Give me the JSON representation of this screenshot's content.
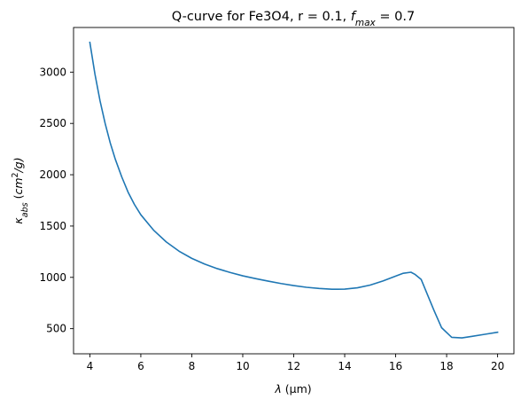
{
  "chart_data": {
    "type": "line",
    "title": {
      "text": "Q-curve for Fe3O4, r = 0.1, ",
      "var_symbol": "f",
      "var_subscript": "max",
      "value_text": " = 0.7"
    },
    "xlabel": {
      "symbol": "λ",
      "unit": " (μm)"
    },
    "ylabel": {
      "symbol": "κ",
      "subscript": "abs",
      "unit_open": " (",
      "unit_base": "cm",
      "unit_sup": "2",
      "unit_rest": "/g)"
    },
    "xlim": [
      3.36,
      20.64
    ],
    "ylim": [
      255,
      3435
    ],
    "xticks": [
      4,
      6,
      8,
      10,
      12,
      14,
      16,
      18,
      20
    ],
    "xtick_labels": [
      "4",
      "6",
      "8",
      "10",
      "12",
      "14",
      "16",
      "18",
      "20"
    ],
    "yticks": [
      500,
      1000,
      1500,
      2000,
      2500,
      3000
    ],
    "ytick_labels": [
      "500",
      "1000",
      "1500",
      "2000",
      "2500",
      "3000"
    ],
    "grid": false,
    "legend": "none",
    "series": [
      {
        "color": "#1f77b4",
        "x": [
          4.0,
          4.2,
          4.4,
          4.6,
          4.8,
          5.0,
          5.25,
          5.5,
          5.75,
          6.0,
          6.5,
          7.0,
          7.5,
          8.0,
          8.5,
          9.0,
          9.5,
          10.0,
          10.5,
          11.0,
          11.5,
          12.0,
          12.5,
          13.0,
          13.5,
          14.0,
          14.5,
          15.0,
          15.5,
          16.0,
          16.3,
          16.6,
          16.75,
          17.0,
          17.3,
          17.5,
          17.8,
          18.2,
          18.6,
          19.0,
          19.5,
          20.0
        ],
        "y": [
          3290,
          2980,
          2720,
          2500,
          2310,
          2150,
          1980,
          1830,
          1710,
          1610,
          1460,
          1345,
          1255,
          1185,
          1130,
          1085,
          1048,
          1015,
          988,
          963,
          940,
          920,
          903,
          892,
          884,
          885,
          898,
          925,
          965,
          1012,
          1040,
          1050,
          1030,
          980,
          800,
          680,
          510,
          415,
          410,
          425,
          445,
          465
        ]
      }
    ]
  }
}
